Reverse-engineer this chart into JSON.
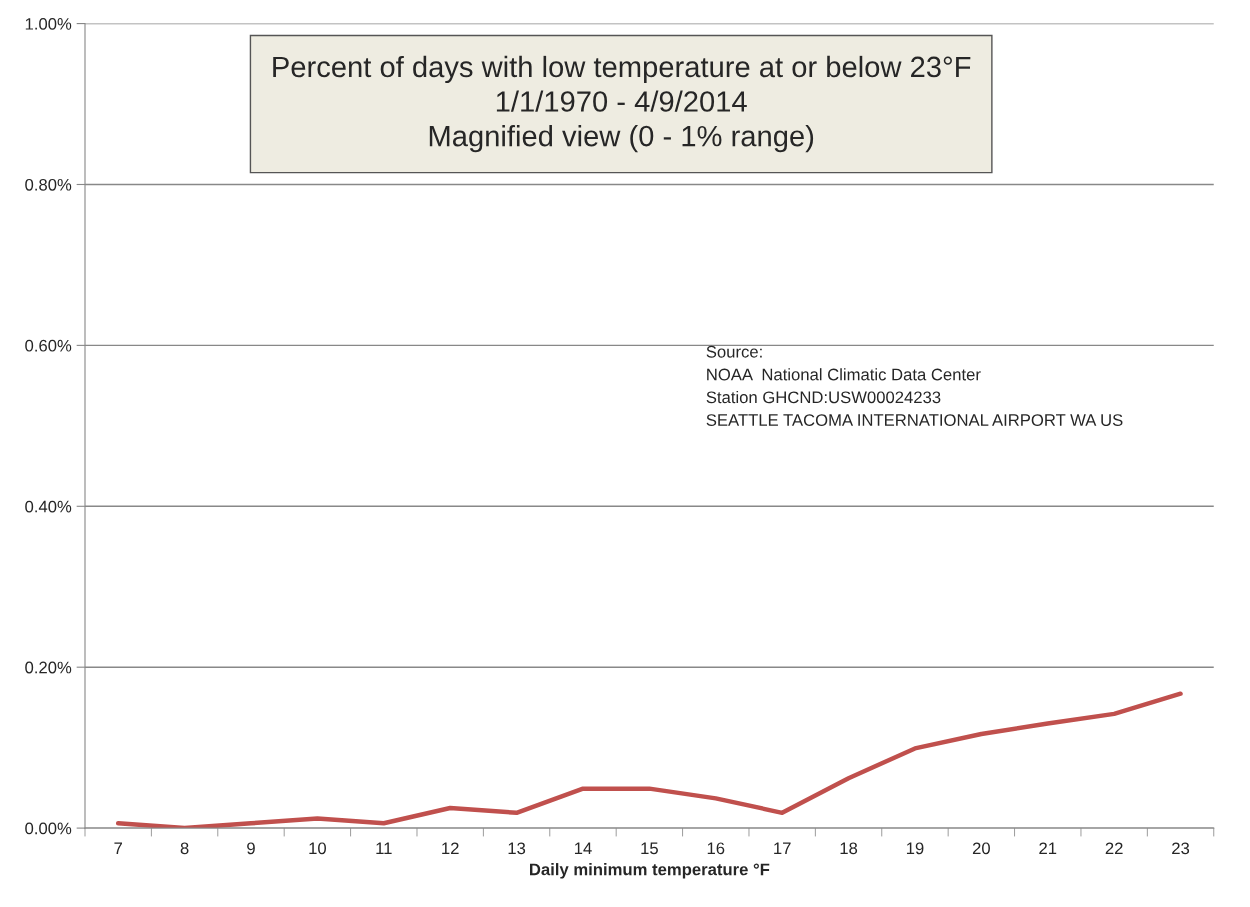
{
  "chart_data": {
    "type": "line",
    "title": "Percent of days with low temperature at or below 23°F",
    "subtitle": "1/1/1970 - 4/9/2014\nMagnified view (0 - 1% range)",
    "xlabel": "Daily minimum temperature °F",
    "categories": [
      "7",
      "8",
      "9",
      "10",
      "11",
      "12",
      "13",
      "14",
      "15",
      "16",
      "17",
      "18",
      "19",
      "20",
      "21",
      "22",
      "23"
    ],
    "series": [
      {
        "color": "#c0504d",
        "values": [
          0.006,
          0.0,
          0.006,
          0.012,
          0.006,
          0.025,
          0.019,
          0.049,
          0.049,
          0.037,
          0.019,
          0.062,
          0.099,
          0.117,
          0.13,
          0.142,
          0.167
        ]
      }
    ],
    "ylim": [
      0,
      1
    ],
    "yticks": [
      {
        "value": 0,
        "label": "0.00%"
      },
      {
        "value": 0.2,
        "label": "0.20%"
      },
      {
        "value": 0.4,
        "label": "0.40%"
      },
      {
        "value": 0.6,
        "label": "0.60%"
      },
      {
        "value": 0.8,
        "label": "0.80%"
      },
      {
        "value": 1,
        "label": "1.00%"
      }
    ],
    "grid": "y",
    "legend": false,
    "marker": "none",
    "line_style": "solid",
    "annotations": [
      "Source:\nNOAA  National Climatic Data Center\nStation GHCND:USW00024233\nSEATTLE TACOMA INTERNATIONAL AIRPORT WA US"
    ]
  }
}
